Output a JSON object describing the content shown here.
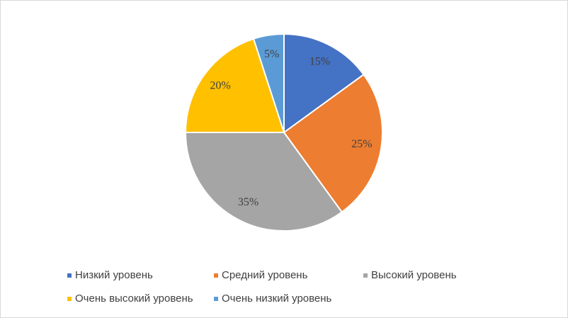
{
  "chart_data": {
    "type": "pie",
    "categories": [
      "Низкий уровень",
      "Средний уровень",
      "Высокий уровень",
      "Очень высокий уровень",
      "Очень низкий уровень"
    ],
    "values": [
      15,
      25,
      35,
      20,
      5
    ],
    "value_labels": [
      "15%",
      "25%",
      "35%",
      "20%",
      "5%"
    ],
    "colors": [
      "#4472c4",
      "#ed7d31",
      "#a5a5a5",
      "#ffc000",
      "#5b9bd5"
    ],
    "legend": "bottom"
  }
}
